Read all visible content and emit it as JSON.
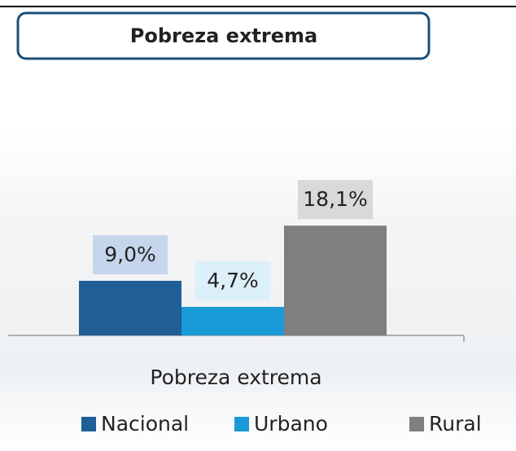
{
  "chart_data": {
    "type": "bar",
    "title": "Pobreza extrema",
    "categories": [
      "Pobreza extrema"
    ],
    "series": [
      {
        "name": "Nacional",
        "color": "#1f5f96",
        "values": [
          9.0
        ],
        "value_labels": [
          "9,0%"
        ]
      },
      {
        "name": "Urbano",
        "color": "#1a9ad6",
        "values": [
          4.7
        ],
        "value_labels": [
          "4,7%"
        ]
      },
      {
        "name": "Rural",
        "color": "#7f7f7f",
        "values": [
          18.1
        ],
        "value_labels": [
          "18,1%"
        ]
      }
    ],
    "ylim": [
      0,
      20
    ]
  }
}
